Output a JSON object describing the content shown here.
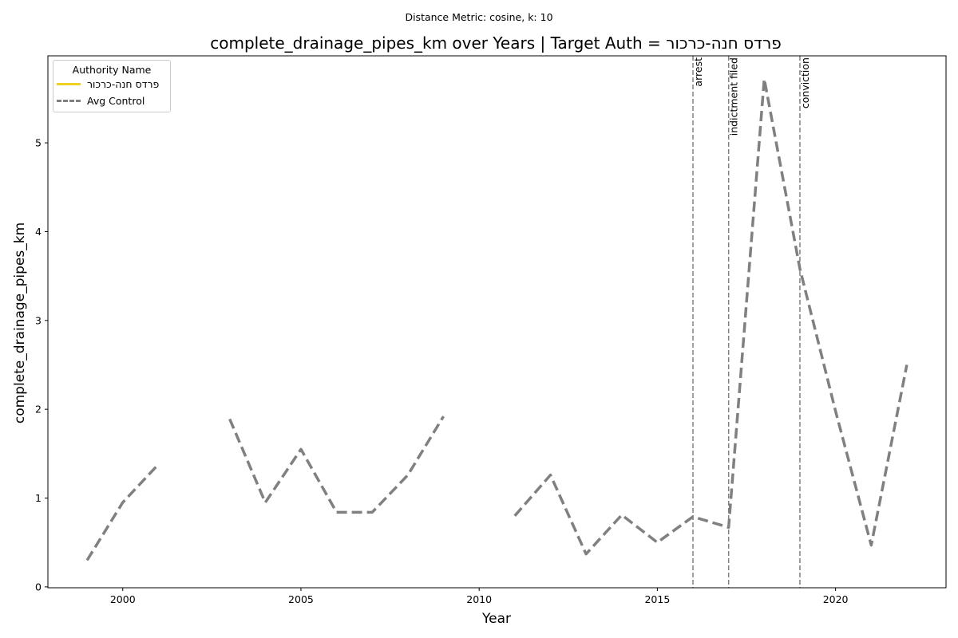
{
  "suptitle": "Distance Metric: cosine, k: 10",
  "chart_data": {
    "type": "line",
    "title": "complete_drainage_pipes_km over Years | Target Auth = פרדס חנה-כרכור",
    "xlabel": "Year",
    "ylabel": "complete_drainage_pipes_km",
    "xlim": [
      1997.9,
      2023.1
    ],
    "ylim": [
      -0.01,
      5.98
    ],
    "xticks": [
      2000,
      2005,
      2010,
      2015,
      2020
    ],
    "yticks": [
      0,
      1,
      2,
      3,
      4,
      5
    ],
    "grid": false,
    "legend": {
      "title": "Authority Name",
      "placement": "top-left",
      "entries": [
        {
          "label": "פרדס חנה-כרכור",
          "color": "#f0d020",
          "style": "solid"
        },
        {
          "label": "Avg Control",
          "color": "#808080",
          "style": "dashed"
        }
      ]
    },
    "series": [
      {
        "name": "פרדס חנה-כרכור",
        "color": "#f0d020",
        "style": "solid",
        "x": [],
        "y": []
      },
      {
        "name": "Avg Control",
        "color": "#808080",
        "style": "dashed",
        "x": [
          1999,
          2000,
          2001,
          2002,
          2003,
          2004,
          2005,
          2006,
          2007,
          2008,
          2009,
          2010,
          2011,
          2012,
          2013,
          2014,
          2015,
          2016,
          2017,
          2018,
          2019,
          2020,
          2021,
          2022
        ],
        "y": [
          0.3,
          0.95,
          1.38,
          null,
          1.89,
          0.95,
          1.55,
          0.84,
          0.84,
          1.26,
          1.92,
          null,
          0.8,
          1.26,
          0.37,
          0.81,
          0.5,
          0.79,
          0.67,
          5.72,
          3.58,
          1.98,
          0.47,
          2.5
        ]
      }
    ],
    "events": [
      {
        "year": 2016,
        "label": "arrest"
      },
      {
        "year": 2017,
        "label": "indictment filed"
      },
      {
        "year": 2019,
        "label": "conviction"
      }
    ]
  }
}
